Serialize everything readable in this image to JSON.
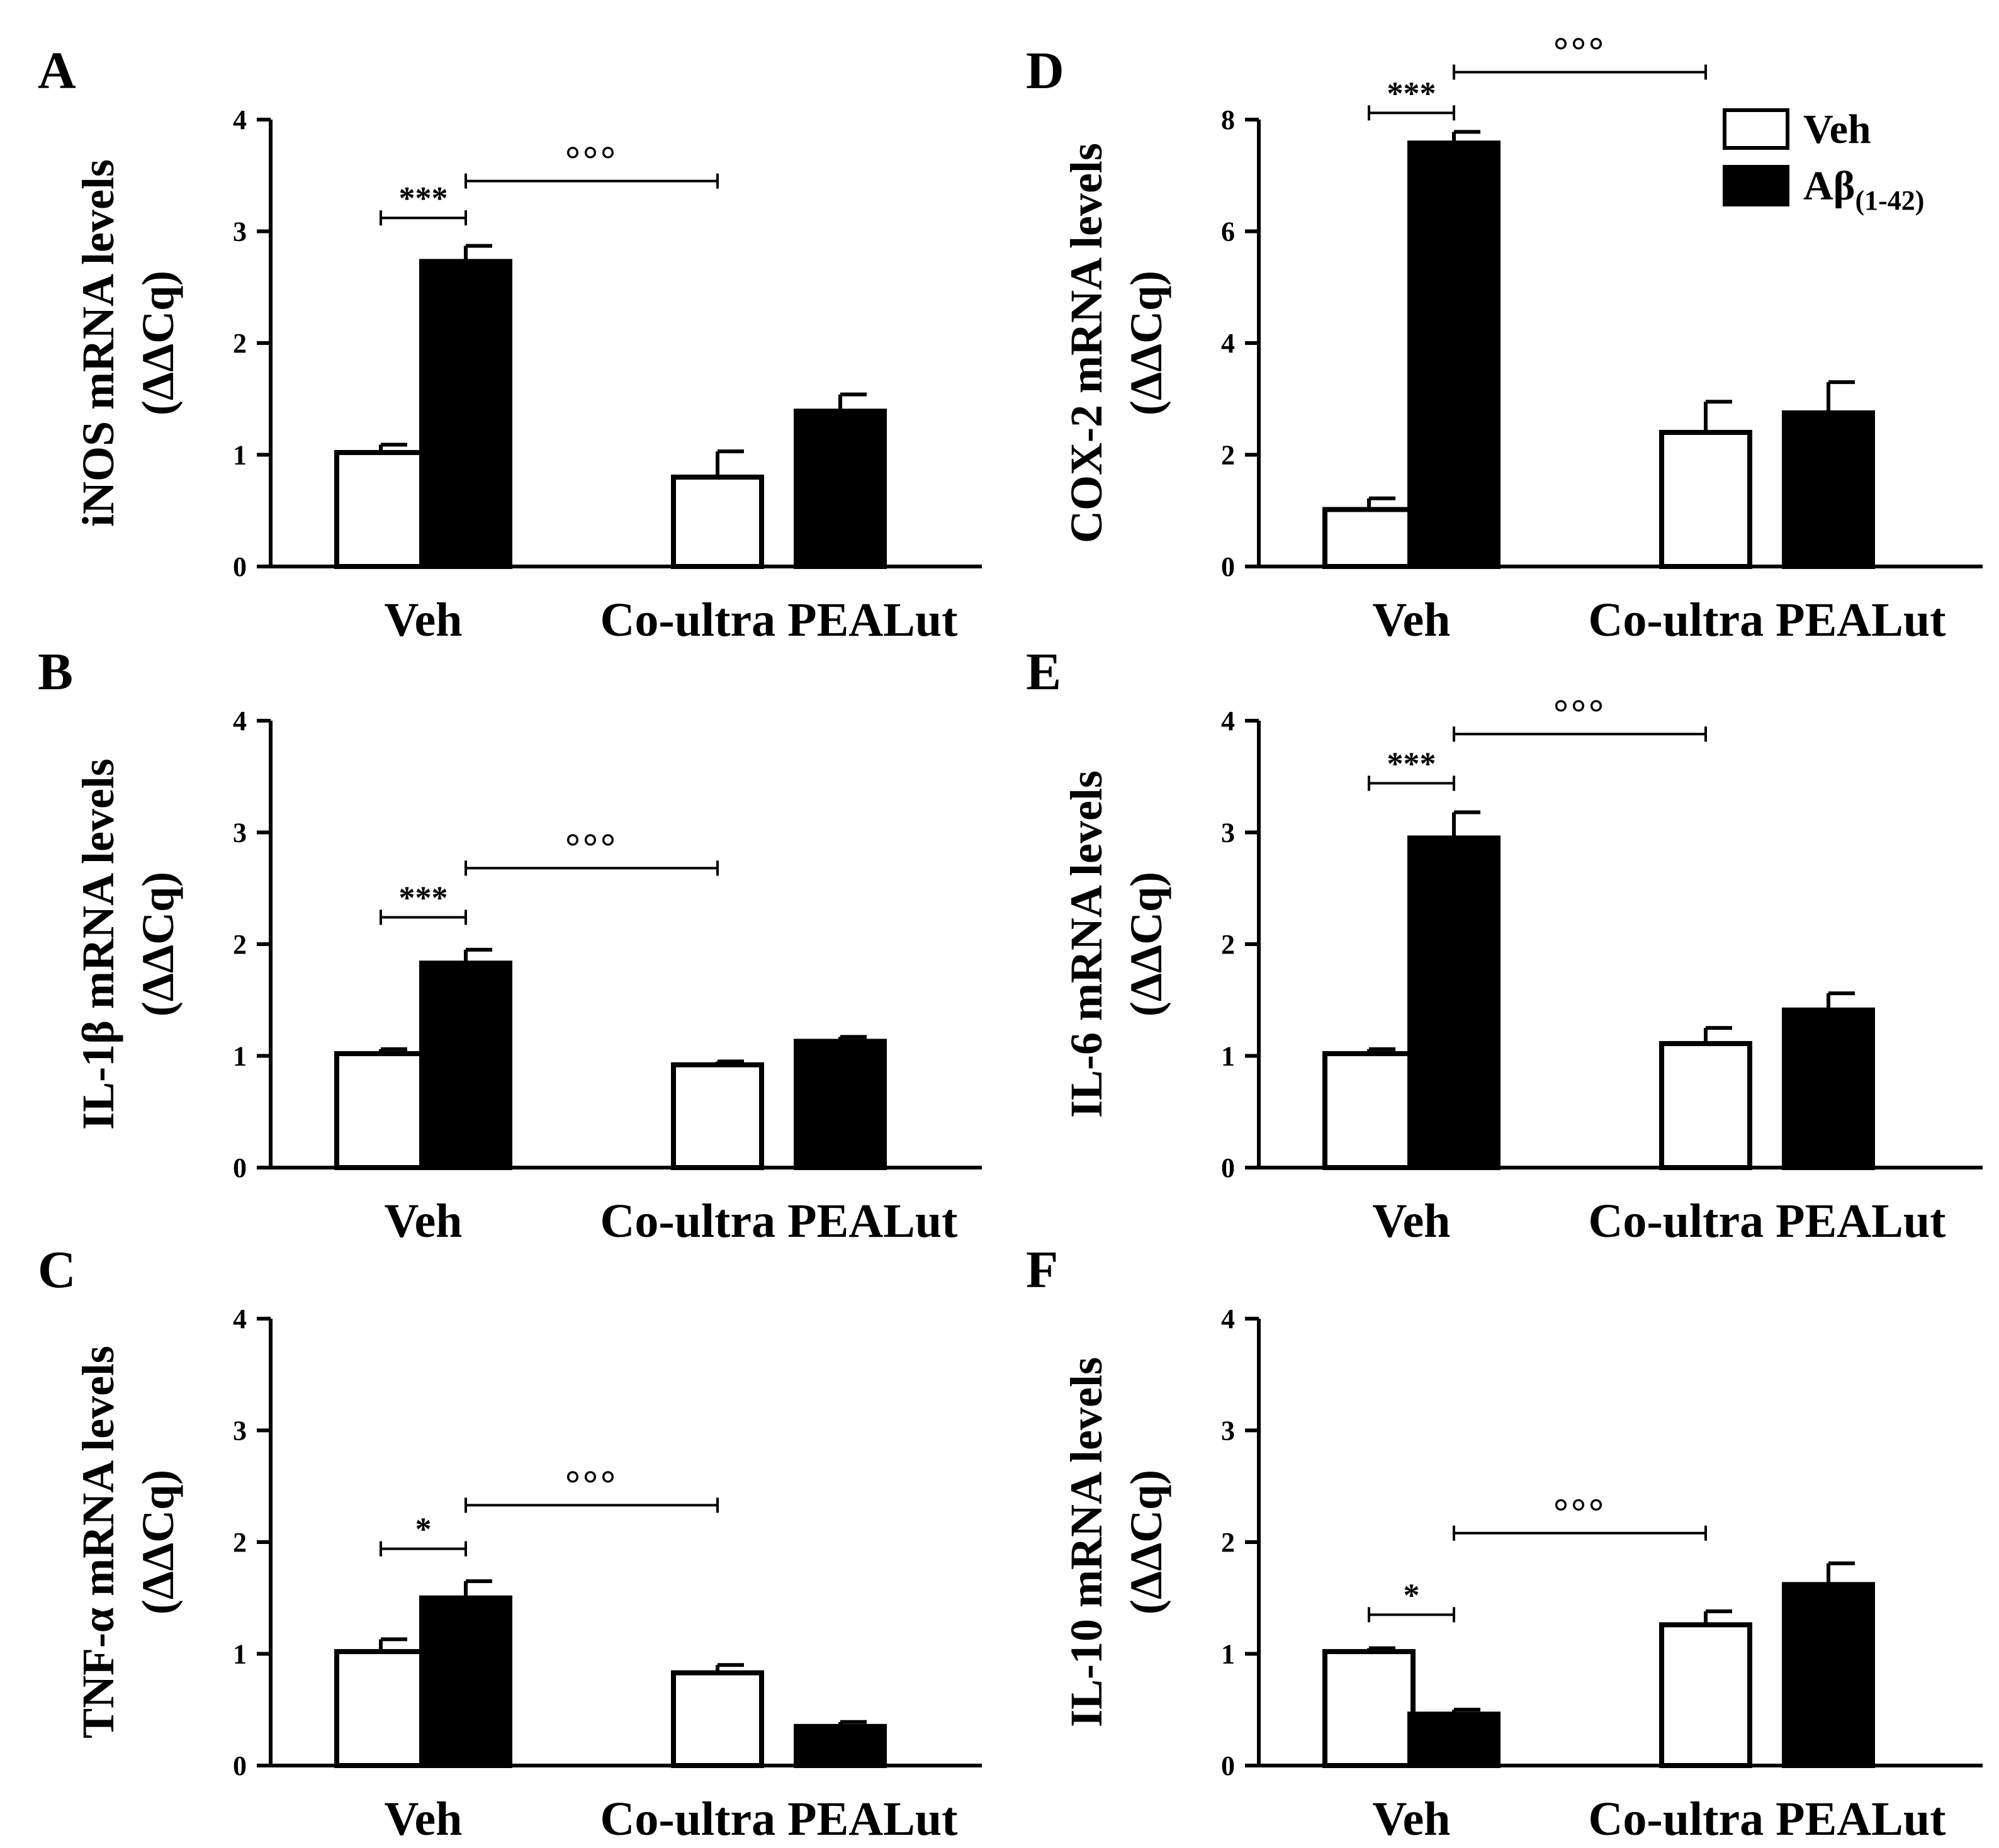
{
  "colors": {
    "veh_fill": "#ffffff",
    "abeta_fill": "#000000",
    "stroke": "#000000",
    "background": "#ffffff"
  },
  "legend": {
    "placement": "top-right of panel D",
    "veh_label": "Veh",
    "abeta_label": "Aβ",
    "abeta_subscript": "(1-42)"
  },
  "chart_data": [
    {
      "type": "bar",
      "panel_letter": "A",
      "ylabel": "iNOS mRNA levels",
      "ylabel_unit": "(ΔΔCq)",
      "groups": [
        "Veh",
        "Co-ultra PEALut"
      ],
      "ylim": [
        0,
        4
      ],
      "yticks": [
        "0",
        "1",
        "2",
        "3",
        "4"
      ],
      "series": [
        {
          "name": "Veh",
          "values": [
            1.02,
            0.8
          ],
          "errors": [
            0.07,
            0.23
          ]
        },
        {
          "name": "Aβ(1-42)",
          "values": [
            2.73,
            1.39
          ],
          "errors": [
            0.14,
            0.15
          ]
        }
      ],
      "annotations": [
        {
          "symbol": "***",
          "from": "Veh/Veh",
          "to": "Veh/Aβ(1-42)",
          "y": 3.12
        },
        {
          "symbol": "°°°",
          "from": "Veh/Aβ(1-42)",
          "to": "Co-ultra PEALut/Veh",
          "y": 3.45
        }
      ]
    },
    {
      "type": "bar",
      "panel_letter": "B",
      "ylabel": "IL-1β mRNA levels",
      "ylabel_unit": "(ΔΔCq)",
      "groups": [
        "Veh",
        "Co-ultra PEALut"
      ],
      "ylim": [
        0,
        4
      ],
      "yticks": [
        "0",
        "1",
        "2",
        "3",
        "4"
      ],
      "series": [
        {
          "name": "Veh",
          "values": [
            1.02,
            0.92
          ],
          "errors": [
            0.04,
            0.03
          ]
        },
        {
          "name": "Aβ(1-42)",
          "values": [
            1.83,
            1.13
          ],
          "errors": [
            0.12,
            0.04
          ]
        }
      ],
      "annotations": [
        {
          "symbol": "***",
          "from": "Veh/Veh",
          "to": "Veh/Aβ(1-42)",
          "y": 2.24
        },
        {
          "symbol": "°°°",
          "from": "Veh/Aβ(1-42)",
          "to": "Co-ultra PEALut/Veh",
          "y": 2.68
        }
      ]
    },
    {
      "type": "bar",
      "panel_letter": "C",
      "ylabel": "TNF-α mRNA levels",
      "ylabel_unit": "(ΔΔCq)",
      "groups": [
        "Veh",
        "Co-ultra PEALut"
      ],
      "ylim": [
        0,
        4
      ],
      "yticks": [
        "0",
        "1",
        "2",
        "3",
        "4"
      ],
      "series": [
        {
          "name": "Veh",
          "values": [
            1.02,
            0.83
          ],
          "errors": [
            0.11,
            0.07
          ]
        },
        {
          "name": "Aβ(1-42)",
          "values": [
            1.5,
            0.35
          ],
          "errors": [
            0.15,
            0.04
          ]
        }
      ],
      "annotations": [
        {
          "symbol": "*",
          "from": "Veh/Veh",
          "to": "Veh/Aβ(1-42)",
          "y": 1.94
        },
        {
          "symbol": "°°°",
          "from": "Veh/Aβ(1-42)",
          "to": "Co-ultra PEALut/Veh",
          "y": 2.33
        }
      ]
    },
    {
      "type": "bar",
      "panel_letter": "D",
      "ylabel": "COX-2 mRNA levels",
      "ylabel_unit": "(ΔΔCq)",
      "groups": [
        "Veh",
        "Co-ultra PEALut"
      ],
      "ylim": [
        0,
        8
      ],
      "yticks": [
        "0",
        "2",
        "4",
        "6",
        "8"
      ],
      "series": [
        {
          "name": "Veh",
          "values": [
            1.02,
            2.4
          ],
          "errors": [
            0.2,
            0.55
          ]
        },
        {
          "name": "Aβ(1-42)",
          "values": [
            7.58,
            2.75
          ],
          "errors": [
            0.2,
            0.55
          ]
        }
      ],
      "annotations": [
        {
          "symbol": "***",
          "from": "Veh/Veh",
          "to": "Veh/Aβ(1-42)",
          "y": 8.12
        },
        {
          "symbol": "°°°",
          "from": "Veh/Aβ(1-42)",
          "to": "Co-ultra PEALut/Veh",
          "y": 8.85
        }
      ]
    },
    {
      "type": "bar",
      "panel_letter": "E",
      "ylabel": "IL-6 mRNA levels",
      "ylabel_unit": "(ΔΔCq)",
      "groups": [
        "Veh",
        "Co-ultra PEALut"
      ],
      "ylim": [
        0,
        4
      ],
      "yticks": [
        "0",
        "1",
        "2",
        "3",
        "4"
      ],
      "series": [
        {
          "name": "Veh",
          "values": [
            1.02,
            1.11
          ],
          "errors": [
            0.04,
            0.14
          ]
        },
        {
          "name": "Aβ(1-42)",
          "values": [
            2.95,
            1.41
          ],
          "errors": [
            0.23,
            0.15
          ]
        }
      ],
      "annotations": [
        {
          "symbol": "***",
          "from": "Veh/Veh",
          "to": "Veh/Aβ(1-42)",
          "y": 3.44
        },
        {
          "symbol": "°°°",
          "from": "Veh/Aβ(1-42)",
          "to": "Co-ultra PEALut/Veh",
          "y": 3.88
        }
      ]
    },
    {
      "type": "bar",
      "panel_letter": "F",
      "ylabel": "IL-10 mRNA levels",
      "ylabel_unit": "(ΔΔCq)",
      "groups": [
        "Veh",
        "Co-ultra PEALut"
      ],
      "ylim": [
        0,
        4
      ],
      "yticks": [
        "0",
        "1",
        "2",
        "3",
        "4"
      ],
      "series": [
        {
          "name": "Veh",
          "values": [
            1.02,
            1.26
          ],
          "errors": [
            0.03,
            0.12
          ]
        },
        {
          "name": "Aβ(1-42)",
          "values": [
            0.46,
            1.62
          ],
          "errors": [
            0.04,
            0.19
          ]
        }
      ],
      "annotations": [
        {
          "symbol": "*",
          "from": "Veh/Veh",
          "to": "Veh/Aβ(1-42)",
          "y": 1.35
        },
        {
          "symbol": "°°°",
          "from": "Veh/Aβ(1-42)",
          "to": "Co-ultra PEALut/Veh",
          "y": 2.08
        }
      ]
    }
  ]
}
